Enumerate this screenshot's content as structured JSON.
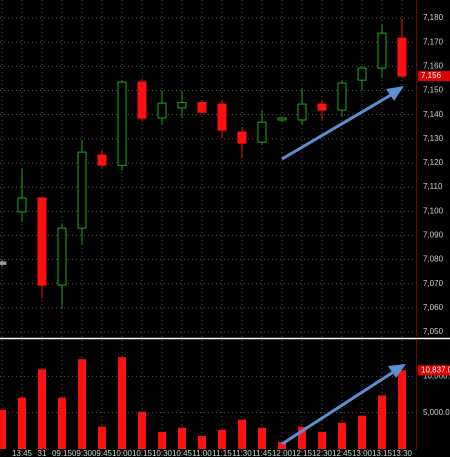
{
  "chart_data": [
    {
      "type": "candlestick",
      "categories": [
        null,
        "13:45",
        "31",
        "09:15",
        "09:30",
        "09:45",
        "10:00",
        "10:15",
        "10:30",
        "10:45",
        "11:00",
        "11:15",
        "11:30",
        "11:45",
        "12:00",
        "12:15",
        "12:30",
        "12:45",
        "13:00",
        "13:15",
        "13:30"
      ],
      "open": [
        7079,
        7099.7,
        7105.5,
        7069.4,
        7093,
        7123.3,
        7119,
        7153.5,
        7138.6,
        7142.8,
        7145,
        7144.4,
        7132.8,
        7128.6,
        7137.8,
        7137.8,
        7144.4,
        7141.9,
        7154.3,
        7159.3,
        7171.7
      ],
      "high": [
        7080,
        7117.9,
        7105.5,
        7095,
        7129.5,
        7125.3,
        7154.3,
        7155,
        7150,
        7150,
        7146,
        7146,
        7134.9,
        7141.9,
        7139,
        7151,
        7146,
        7154.3,
        7160,
        7177.1,
        7180
      ],
      "low": [
        7077,
        7095.5,
        7064,
        7060,
        7086,
        7118,
        7117,
        7137,
        7135.7,
        7138.6,
        7140.7,
        7130.3,
        7122,
        7127.4,
        7137,
        7135.7,
        7137.8,
        7139.4,
        7150,
        7155.2,
        7155.2
      ],
      "close": [
        7078,
        7105.5,
        7069.4,
        7093,
        7124.5,
        7119.1,
        7153.5,
        7138.6,
        7144.8,
        7145,
        7141,
        7133.6,
        7128.2,
        7136.9,
        7138.6,
        7144.4,
        7141.9,
        7153.1,
        7159.3,
        7173.8,
        7156
      ],
      "colors": [
        "#9a9a9a",
        "#1fa81f",
        "#ff1010",
        "#1fa81f",
        "#1fa81f",
        "#ff1010",
        "#1fa81f",
        "#ff1010",
        "#1fa81f",
        "#1fa81f",
        "#ff1010",
        "#ff1010",
        "#ff1010",
        "#1fa81f",
        "#1fa81f",
        "#1fa81f",
        "#ff1010",
        "#1fa81f",
        "#1fa81f",
        "#1fa81f",
        "#ff1010"
      ],
      "last_price": {
        "value": 7156,
        "label": "7,156"
      },
      "ylim": [
        7047.5,
        7187.5
      ],
      "yticks": [
        {
          "value": 7050,
          "label": "7,050"
        },
        {
          "value": 7060,
          "label": "7,060"
        },
        {
          "value": 7070,
          "label": "7,070"
        },
        {
          "value": 7080,
          "label": "7,080"
        },
        {
          "value": 7090,
          "label": "7,090"
        },
        {
          "value": 7100,
          "label": "7,100"
        },
        {
          "value": 7110,
          "label": "7,110"
        },
        {
          "value": 7120,
          "label": "7,120"
        },
        {
          "value": 7130,
          "label": "7,130"
        },
        {
          "value": 7140,
          "label": "7,140"
        },
        {
          "value": 7150,
          "label": "7,150"
        },
        {
          "value": 7160,
          "label": "7,160"
        },
        {
          "value": 7170,
          "label": "7,170"
        },
        {
          "value": 7180,
          "label": "7,180"
        }
      ],
      "grid": true
    },
    {
      "type": "bar",
      "values": [
        5400,
        7080,
        10970,
        7080,
        12360,
        3060,
        12640,
        5140,
        2360,
        2920,
        1800,
        2640,
        4030,
        2920,
        970,
        3060,
        2360,
        3610,
        4580,
        7360,
        10837
      ],
      "color": "#ff1010",
      "last_value": {
        "value": 10837,
        "label": "10,837.00"
      },
      "ylim": [
        0,
        15000
      ],
      "yticks": [
        {
          "value": 5000,
          "label": "5,000.00"
        },
        {
          "value": 10000,
          "label": "10,000.00"
        }
      ],
      "grid": true
    }
  ]
}
